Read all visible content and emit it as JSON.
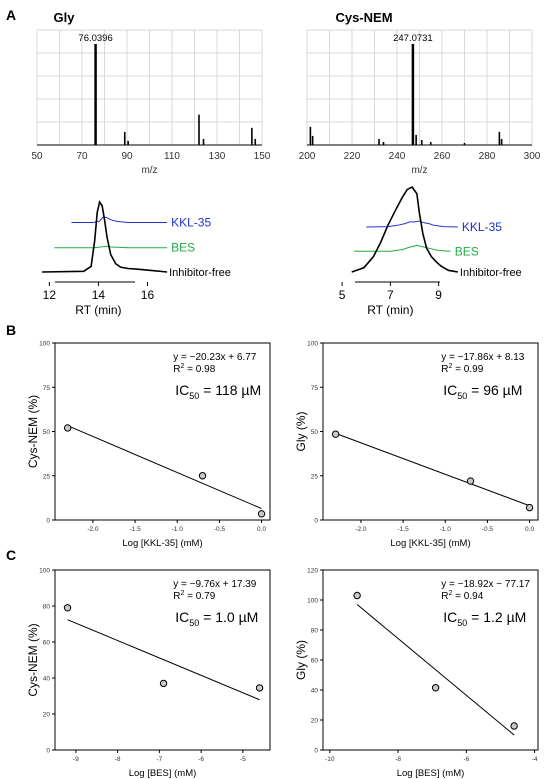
{
  "panel_labels": {
    "A": "A",
    "B": "B",
    "C": "C"
  },
  "chart_data": [
    {
      "type": "bar",
      "title": "Gly",
      "xlabel": "m/z",
      "xlim": [
        50,
        150
      ],
      "x_ticks": [
        "50",
        "70",
        "90",
        "110",
        "130",
        "150"
      ],
      "x": [
        76.04,
        89.0,
        90.5,
        122.0,
        124.0,
        145.5,
        147.0
      ],
      "values": [
        100,
        13,
        4,
        30,
        6,
        17,
        6
      ],
      "peak_label": "76.0396"
    },
    {
      "type": "bar",
      "title": "Cys-NEM",
      "xlabel": "m/z",
      "xlim": [
        200,
        300
      ],
      "x_ticks": [
        "200",
        "220",
        "240",
        "260",
        "280",
        "300"
      ],
      "x": [
        201.5,
        202.5,
        232.0,
        234.0,
        247.07,
        248.5,
        251.0,
        255.0,
        270.0,
        285.5,
        286.5
      ],
      "values": [
        18,
        9,
        6,
        3,
        100,
        10,
        5,
        3,
        2,
        13,
        6
      ],
      "peak_label": "247.0731"
    },
    {
      "type": "line",
      "xlabel": "RT (min)",
      "xlim": [
        11.7,
        17
      ],
      "x_ticks": [
        "12",
        "14",
        "16"
      ],
      "series": [
        {
          "name": "KKL-35",
          "color": "#2233cc",
          "offset": 0.55,
          "x": [
            12.9,
            13.8,
            14.05,
            14.2,
            14.35,
            14.5,
            14.7,
            14.9,
            15.2,
            16.8
          ],
          "y": [
            0,
            0,
            0.02,
            0.08,
            0.07,
            0.04,
            0.02,
            0.01,
            0,
            0
          ]
        },
        {
          "name": "BES",
          "color": "#22aa44",
          "offset": 0.27,
          "x": [
            12.2,
            13.8,
            14.1,
            14.3,
            14.5,
            14.8,
            15.2,
            16.8
          ],
          "y": [
            0,
            0,
            0.01,
            0.02,
            0.01,
            0.005,
            0,
            0
          ]
        },
        {
          "name": "Inhibitor-free",
          "color": "#000000",
          "offset": 0,
          "x": [
            11.7,
            13.4,
            13.7,
            13.85,
            13.95,
            14.05,
            14.15,
            14.25,
            14.35,
            14.5,
            14.7,
            14.9,
            15.2,
            15.6,
            16.2,
            16.8
          ],
          "y": [
            0,
            0.01,
            0.08,
            0.45,
            0.85,
            1.0,
            0.95,
            0.75,
            0.5,
            0.25,
            0.12,
            0.07,
            0.05,
            0.04,
            0.02,
            0
          ]
        }
      ]
    },
    {
      "type": "line",
      "xlabel": "RT (min)",
      "xlim": [
        4.5,
        10.3
      ],
      "x_ticks": [
        "5",
        "7",
        "9"
      ],
      "series": [
        {
          "name": "KKL-35",
          "color": "#2233cc",
          "offset": 0.5,
          "x": [
            6.0,
            6.9,
            7.3,
            7.6,
            7.8,
            8.0,
            8.2,
            8.4,
            8.6,
            8.8,
            9.2,
            9.8
          ],
          "y": [
            0,
            0.005,
            0.02,
            0.04,
            0.06,
            0.06,
            0.07,
            0.05,
            0.04,
            0.02,
            0.005,
            0
          ]
        },
        {
          "name": "BES",
          "color": "#22aa44",
          "offset": 0.23,
          "x": [
            5.5,
            7.0,
            7.5,
            7.8,
            8.1,
            8.4,
            8.7,
            9.0,
            9.5
          ],
          "y": [
            0,
            0,
            0.02,
            0.05,
            0.07,
            0.05,
            0.03,
            0.01,
            0
          ]
        },
        {
          "name": "Inhibitor-free",
          "color": "#000000",
          "offset": 0,
          "x": [
            5.4,
            5.9,
            6.3,
            6.6,
            6.9,
            7.2,
            7.5,
            7.7,
            7.9,
            8.1,
            8.2,
            8.35,
            8.5,
            8.7,
            8.9,
            9.1,
            9.4,
            9.8
          ],
          "y": [
            0,
            0.05,
            0.18,
            0.35,
            0.55,
            0.72,
            0.88,
            0.97,
            1.0,
            0.92,
            0.7,
            0.45,
            0.28,
            0.18,
            0.12,
            0.07,
            0.02,
            0
          ]
        }
      ]
    },
    {
      "type": "scatter",
      "xlabel": "Log [KKL-35] (mM)",
      "ylabel": "Cys-NEM (%)",
      "xlim": [
        -2.45,
        0.1
      ],
      "ylim": [
        0,
        100
      ],
      "x_ticks": [
        -2.0,
        -1.5,
        -1.0,
        -0.5,
        0.0
      ],
      "x_tick_labels": [
        "-2.0",
        "-1.5",
        "-1.0",
        "-0.5",
        "0.0"
      ],
      "y_ticks": [
        0,
        25,
        50,
        75,
        100
      ],
      "y_tick_labels": [
        "0",
        "25",
        "50",
        "75",
        "100"
      ],
      "points": [
        {
          "x": -2.3,
          "y": 52
        },
        {
          "x": -0.7,
          "y": 25
        },
        {
          "x": 0.0,
          "y": 3.5
        }
      ],
      "fit": {
        "slope": -20.23,
        "intercept": 6.77,
        "x_range": [
          -2.3,
          0.0
        ]
      },
      "equation": "y = −20.23x + 6.77",
      "r2_label": "R",
      "r2_sup": "2",
      "r2_value": " = 0.98",
      "ic50_label": "IC",
      "ic50_sub": "50",
      "ic50_value": " = 118 µM"
    },
    {
      "type": "scatter",
      "xlabel": "Log [KKL-35] (mM)",
      "ylabel": "Gly (%)",
      "xlim": [
        -2.45,
        0.1
      ],
      "ylim": [
        0,
        100
      ],
      "x_ticks": [
        -2.0,
        -1.5,
        -1.0,
        -0.5,
        0.0
      ],
      "x_tick_labels": [
        "-2.0",
        "-1.5",
        "-1.0",
        "-0.5",
        "0.0"
      ],
      "y_ticks": [
        0,
        25,
        50,
        75,
        100
      ],
      "y_tick_labels": [
        "0",
        "25",
        "50",
        "75",
        "100"
      ],
      "points": [
        {
          "x": -2.3,
          "y": 48.5
        },
        {
          "x": -0.7,
          "y": 22
        },
        {
          "x": 0.0,
          "y": 7
        }
      ],
      "fit": {
        "slope": -17.86,
        "intercept": 8.13,
        "x_range": [
          -2.3,
          0.0
        ]
      },
      "equation": "y = −17.86x + 8.13",
      "r2_label": "R",
      "r2_sup": "2",
      "r2_value": " = 0.99",
      "ic50_label": "IC",
      "ic50_sub": "50",
      "ic50_value": " = 96 µM"
    },
    {
      "type": "scatter",
      "xlabel": "Log [BES] (mM)",
      "ylabel": "Cys-NEM (%)",
      "xlim": [
        -9.5,
        -4.35
      ],
      "ylim": [
        0,
        100
      ],
      "x_ticks": [
        -9,
        -8,
        -7,
        -6,
        -5
      ],
      "x_tick_labels": [
        "-9",
        "-8",
        "-7",
        "-6",
        "-5"
      ],
      "y_ticks": [
        0,
        20,
        40,
        60,
        80,
        100
      ],
      "y_tick_labels": [
        "0",
        "20",
        "40",
        "60",
        "80",
        "100"
      ],
      "points": [
        {
          "x": -9.2,
          "y": 79
        },
        {
          "x": -6.9,
          "y": 37
        },
        {
          "x": -4.6,
          "y": 34.5
        }
      ],
      "fit": {
        "slope": -9.76,
        "intercept": 17.39,
        "x_range": [
          -9.2,
          -4.6
        ]
      },
      "equation": "y = −9.76x + 17.39",
      "r2_label": "R",
      "r2_sup": "2",
      "r2_value": " = 0.79",
      "ic50_label": "IC",
      "ic50_sub": "50",
      "ic50_value": " = 1.0 µM"
    },
    {
      "type": "scatter",
      "xlabel": "Log [BES] (mM)",
      "ylabel": "Gly (%)",
      "xlim": [
        -10.2,
        -3.9
      ],
      "ylim": [
        0,
        120
      ],
      "x_ticks": [
        -10,
        -8,
        -6,
        -4
      ],
      "x_tick_labels": [
        "-10",
        "-8",
        "-6",
        "-4"
      ],
      "y_ticks": [
        0,
        20,
        40,
        60,
        80,
        100,
        120
      ],
      "y_tick_labels": [
        "0",
        "20",
        "40",
        "60",
        "80",
        "100",
        "120"
      ],
      "points": [
        {
          "x": -9.2,
          "y": 103
        },
        {
          "x": -6.9,
          "y": 41.5
        },
        {
          "x": -4.6,
          "y": 16
        }
      ],
      "fit": {
        "slope": -18.92,
        "intercept": -77.17,
        "x_range": [
          -9.2,
          -4.6
        ]
      },
      "equation": "y = −18.92x − 77.17",
      "r2_label": "R",
      "r2_sup": "2",
      "r2_value": " = 0.94",
      "ic50_label": "IC",
      "ic50_sub": "50",
      "ic50_value": " = 1.2 µM"
    }
  ]
}
